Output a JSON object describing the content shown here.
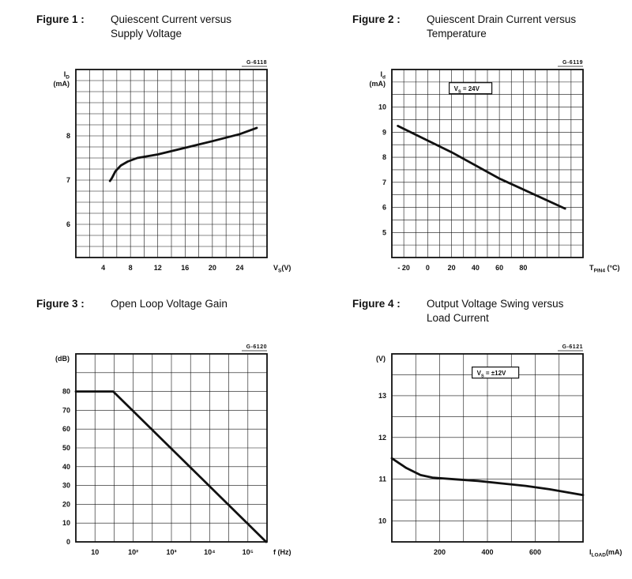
{
  "colors": {
    "background": "#ffffff",
    "ink": "#111111"
  },
  "figures": [
    {
      "label": "Figure 1 :",
      "title_lines": [
        "Quiescent Current versus",
        "Supply Voltage"
      ]
    },
    {
      "label": "Figure 2 :",
      "title_lines": [
        "Quiescent Drain Current versus",
        "Temperature"
      ]
    },
    {
      "label": "Figure 3 :",
      "title_lines": [
        "Open Loop Voltage Gain"
      ]
    },
    {
      "label": "Figure 4 :",
      "title_lines": [
        "Output Voltage Swing versus",
        "Load Current"
      ]
    }
  ],
  "chart_data": [
    {
      "type": "line",
      "title": "Quiescent Current versus Supply Voltage",
      "code": "G-6118",
      "grid": true,
      "x_axis": {
        "scale": "linear",
        "min": 0,
        "max": 28,
        "grid_step": 2,
        "unit_label": {
          "text": "V",
          "sub": "S",
          "suffix": "(V)"
        },
        "ticks": [
          {
            "v": 4,
            "label": "4"
          },
          {
            "v": 8,
            "label": "8"
          },
          {
            "v": 12,
            "label": "12"
          },
          {
            "v": 16,
            "label": "16"
          },
          {
            "v": 20,
            "label": "20"
          },
          {
            "v": 24,
            "label": "24"
          }
        ]
      },
      "y_axis": {
        "min": 5.25,
        "max": 9.5,
        "grid_step": 0.25,
        "label_lines": [
          {
            "text": "I",
            "sub": "D"
          },
          {
            "text": "(mA)"
          }
        ],
        "ticks": [
          {
            "v": 6,
            "label": "6"
          },
          {
            "v": 7,
            "label": "7"
          },
          {
            "v": 8,
            "label": "8"
          }
        ]
      },
      "annotation": null,
      "series": [
        {
          "name": "quiescent-current",
          "points": [
            [
              5,
              6.98
            ],
            [
              5.3,
              7.05
            ],
            [
              5.8,
              7.2
            ],
            [
              6.6,
              7.33
            ],
            [
              7.6,
              7.42
            ],
            [
              9,
              7.5
            ],
            [
              12,
              7.58
            ],
            [
              16,
              7.73
            ],
            [
              20,
              7.88
            ],
            [
              24,
              8.04
            ],
            [
              26.5,
              8.18
            ]
          ]
        }
      ]
    },
    {
      "type": "line",
      "title": "Quiescent Drain Current versus Temperature",
      "code": "G-6119",
      "grid": true,
      "x_axis": {
        "scale": "linear",
        "min": -30,
        "max": 130,
        "grid_step": 10,
        "unit_label": {
          "text": "T",
          "sub": "PIN4",
          "suffix": " (°C)"
        },
        "ticks": [
          {
            "v": -20,
            "label": "- 20"
          },
          {
            "v": 0,
            "label": "0"
          },
          {
            "v": 20,
            "label": "20"
          },
          {
            "v": 40,
            "label": "40"
          },
          {
            "v": 60,
            "label": "60"
          },
          {
            "v": 80,
            "label": "80"
          }
        ]
      },
      "y_axis": {
        "min": 4,
        "max": 11.5,
        "grid_step": 0.5,
        "label_lines": [
          {
            "text": "I",
            "sub": "d"
          },
          {
            "text": "(mA)"
          }
        ],
        "ticks": [
          {
            "v": 5,
            "label": "5"
          },
          {
            "v": 6,
            "label": "6"
          },
          {
            "v": 7,
            "label": "7"
          },
          {
            "v": 8,
            "label": "8"
          },
          {
            "v": 9,
            "label": "9"
          },
          {
            "v": 10,
            "label": "10"
          }
        ]
      },
      "annotation": {
        "label": {
          "text": "V",
          "sub": "S",
          "suffix": " = 24V"
        },
        "fx": 0.3,
        "fy": 0.07
      },
      "series": [
        {
          "name": "quiescent-drain-current",
          "points": [
            [
              -25,
              9.25
            ],
            [
              20,
              8.2
            ],
            [
              60,
              7.15
            ],
            [
              115,
              5.95
            ]
          ]
        }
      ]
    },
    {
      "type": "line",
      "title": "Open Loop Voltage Gain",
      "code": "G-6120",
      "grid": true,
      "x_axis": {
        "scale": "log",
        "min": 3.16,
        "max": 316228,
        "grid_step_decades": 0.5,
        "unit_label": {
          "text": "f",
          "suffix": " (Hz)"
        },
        "ticks": [
          {
            "v": 10,
            "label": "10"
          },
          {
            "v": 100,
            "label": "10²"
          },
          {
            "v": 1000,
            "label": "10³"
          },
          {
            "v": 10000,
            "label": "10⁴"
          },
          {
            "v": 100000,
            "label": "10⁵"
          }
        ]
      },
      "y_axis": {
        "min": 0,
        "max": 100,
        "grid_step": 10,
        "label_lines": [
          {
            "text": "(dB)"
          }
        ],
        "ticks": [
          {
            "v": 0,
            "label": "0"
          },
          {
            "v": 10,
            "label": "10"
          },
          {
            "v": 20,
            "label": "20"
          },
          {
            "v": 30,
            "label": "30"
          },
          {
            "v": 40,
            "label": "40"
          },
          {
            "v": 50,
            "label": "50"
          },
          {
            "v": 60,
            "label": "60"
          },
          {
            "v": 70,
            "label": "70"
          },
          {
            "v": 80,
            "label": "80"
          }
        ]
      },
      "annotation": null,
      "series": [
        {
          "name": "open-loop-gain",
          "points": [
            [
              3.16,
              80
            ],
            [
              30,
              80
            ],
            [
              300000,
              0
            ]
          ]
        }
      ]
    },
    {
      "type": "line",
      "title": "Output Voltage Swing versus Load Current",
      "code": "G-6121",
      "grid": true,
      "x_axis": {
        "scale": "linear",
        "min": 0,
        "max": 800,
        "grid_step": 100,
        "unit_label": {
          "text": "I",
          "sub": "LOAD",
          "suffix": "(mA)"
        },
        "ticks": [
          {
            "v": 200,
            "label": "200"
          },
          {
            "v": 400,
            "label": "400"
          },
          {
            "v": 600,
            "label": "600"
          }
        ]
      },
      "y_axis": {
        "min": 9.5,
        "max": 14,
        "grid_step": 0.5,
        "label_lines": [
          {
            "text": "(V)"
          }
        ],
        "ticks": [
          {
            "v": 10,
            "label": "10"
          },
          {
            "v": 11,
            "label": "11"
          },
          {
            "v": 12,
            "label": "12"
          },
          {
            "v": 13,
            "label": "13"
          }
        ]
      },
      "annotation": {
        "label": {
          "text": "V",
          "sub": "S",
          "suffix": " = ±12V"
        },
        "fx": 0.42,
        "fy": 0.07
      },
      "series": [
        {
          "name": "output-voltage-swing",
          "points": [
            [
              0,
              11.5
            ],
            [
              60,
              11.27
            ],
            [
              120,
              11.1
            ],
            [
              170,
              11.04
            ],
            [
              260,
              11.0
            ],
            [
              360,
              10.96
            ],
            [
              460,
              10.9
            ],
            [
              560,
              10.84
            ],
            [
              660,
              10.76
            ],
            [
              800,
              10.62
            ]
          ]
        }
      ]
    }
  ]
}
